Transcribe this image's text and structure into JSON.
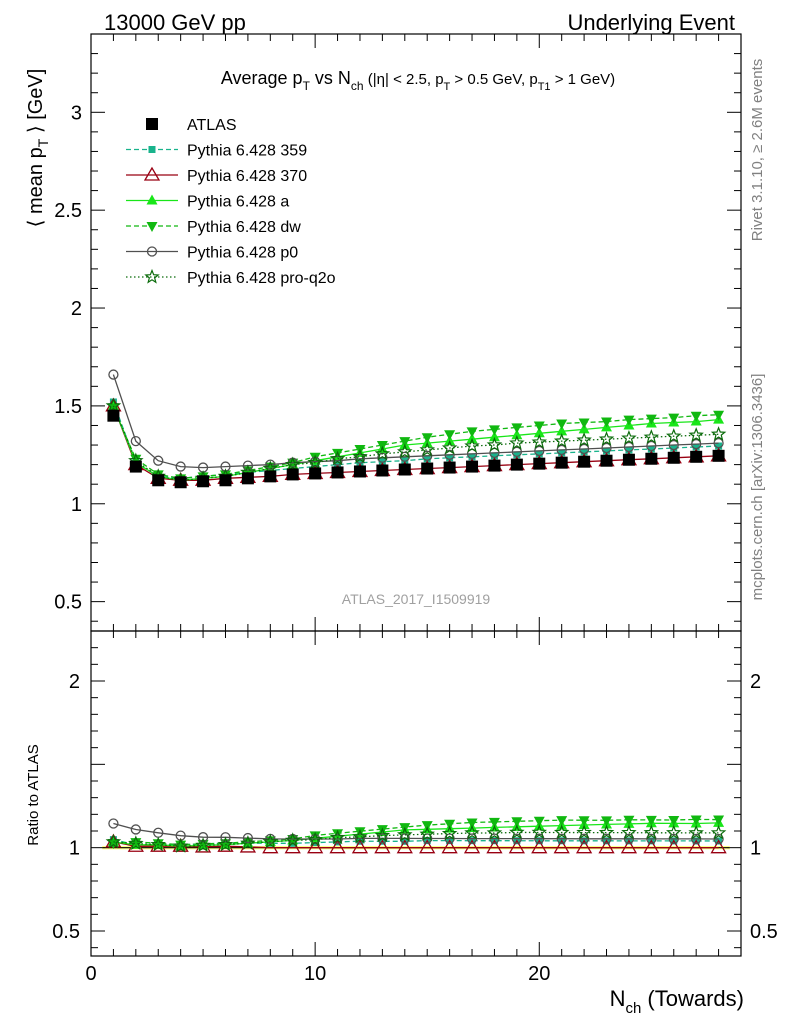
{
  "header": {
    "left": "13000 GeV pp",
    "right": "Underlying Event"
  },
  "side_labels": {
    "rivet": "Rivet 3.1.10, ≥ 2.6M events",
    "mcplots": "mcplots.cern.ch [arXiv:1306.3436]"
  },
  "watermark": "ATLAS_2017_I1509919",
  "colors": {
    "atlas": "#000000",
    "p359": "#19b38c",
    "p370": "#990012",
    "pa": "#19e619",
    "pdw": "#10b810",
    "pp0": "#505050",
    "pq2o": "#0b6b0b"
  },
  "chart_data": [
    {
      "type": "line",
      "title": "Average p_T vs N_ch (|η| < 2.5, p_T > 0.5 GeV, p_T1 > 1 GeV)",
      "title_parts": {
        "main": "Average p",
        "sub1": "T",
        "vs": " vs N",
        "sub2": "ch",
        "cuts_a": " (|η| < 2.5, p",
        "sub3": "T",
        "cuts_b": " > 0.5 GeV, p",
        "sub4": "T1",
        "cuts_c": " > 1 GeV)"
      },
      "ylabel_parts": {
        "pre": "⟨ mean p",
        "sub": "T",
        "post": " ⟩ [GeV]"
      },
      "xlabel_parts": {
        "pre": "N",
        "sub": "ch",
        "post": " (Towards)"
      },
      "xlim": [
        0,
        29
      ],
      "ylim": [
        0.35,
        3.4
      ],
      "y_ticks": [
        0.5,
        1,
        1.5,
        2,
        2.5,
        3
      ],
      "y_tick_labels": [
        "0.5",
        "1",
        "1.5",
        "2",
        "2.5",
        "3"
      ],
      "x_ticks": [
        0,
        10,
        20
      ],
      "x_tick_labels": [
        "0",
        "10",
        "20"
      ],
      "legend_position": "top-left",
      "x": [
        1,
        2,
        3,
        4,
        5,
        6,
        7,
        8,
        9,
        10,
        11,
        12,
        13,
        14,
        15,
        16,
        17,
        18,
        19,
        20,
        21,
        22,
        23,
        24,
        25,
        26,
        27,
        28
      ],
      "series": [
        {
          "name": "ATLAS",
          "key": "atlas",
          "marker": "square",
          "line": "none",
          "values": [
            1.45,
            1.19,
            1.12,
            1.11,
            1.115,
            1.12,
            1.13,
            1.14,
            1.15,
            1.155,
            1.16,
            1.165,
            1.17,
            1.175,
            1.18,
            1.185,
            1.19,
            1.195,
            1.2,
            1.205,
            1.21,
            1.215,
            1.22,
            1.225,
            1.23,
            1.235,
            1.24,
            1.245
          ]
        },
        {
          "name": "Pythia 6.428 359",
          "key": "p359",
          "marker": "small-square",
          "line": "dashed",
          "values": [
            1.52,
            1.21,
            1.14,
            1.13,
            1.14,
            1.15,
            1.16,
            1.17,
            1.18,
            1.19,
            1.2,
            1.21,
            1.215,
            1.22,
            1.23,
            1.235,
            1.24,
            1.245,
            1.25,
            1.255,
            1.26,
            1.265,
            1.27,
            1.275,
            1.28,
            1.285,
            1.29,
            1.295
          ]
        },
        {
          "name": "Pythia 6.428 370",
          "key": "p370",
          "marker": "open-triangle",
          "line": "solid",
          "values": [
            1.5,
            1.2,
            1.13,
            1.12,
            1.12,
            1.13,
            1.135,
            1.14,
            1.15,
            1.155,
            1.16,
            1.165,
            1.17,
            1.175,
            1.18,
            1.185,
            1.19,
            1.195,
            1.2,
            1.205,
            1.21,
            1.215,
            1.22,
            1.225,
            1.23,
            1.235,
            1.24,
            1.245
          ]
        },
        {
          "name": "Pythia 6.428 a",
          "key": "pa",
          "marker": "triangle-up",
          "line": "solid",
          "values": [
            1.5,
            1.21,
            1.14,
            1.12,
            1.13,
            1.14,
            1.16,
            1.18,
            1.2,
            1.22,
            1.24,
            1.26,
            1.28,
            1.3,
            1.31,
            1.32,
            1.33,
            1.34,
            1.35,
            1.36,
            1.37,
            1.38,
            1.39,
            1.4,
            1.41,
            1.415,
            1.42,
            1.43
          ]
        },
        {
          "name": "Pythia 6.428 dw",
          "key": "pdw",
          "marker": "triangle-down",
          "line": "dashed",
          "values": [
            1.49,
            1.23,
            1.15,
            1.13,
            1.14,
            1.15,
            1.17,
            1.19,
            1.21,
            1.24,
            1.26,
            1.28,
            1.3,
            1.32,
            1.34,
            1.355,
            1.37,
            1.38,
            1.39,
            1.4,
            1.41,
            1.415,
            1.42,
            1.43,
            1.435,
            1.44,
            1.45,
            1.455
          ]
        },
        {
          "name": "Pythia 6.428 p0",
          "key": "pp0",
          "marker": "open-circle",
          "line": "solid",
          "values": [
            1.66,
            1.32,
            1.22,
            1.19,
            1.185,
            1.19,
            1.195,
            1.2,
            1.21,
            1.215,
            1.22,
            1.23,
            1.235,
            1.24,
            1.245,
            1.25,
            1.255,
            1.26,
            1.265,
            1.27,
            1.275,
            1.28,
            1.285,
            1.29,
            1.295,
            1.3,
            1.305,
            1.31
          ]
        },
        {
          "name": "Pythia 6.428 pro-q2o",
          "key": "pq2o",
          "marker": "open-star",
          "line": "dotted",
          "values": [
            1.5,
            1.22,
            1.14,
            1.12,
            1.13,
            1.14,
            1.16,
            1.18,
            1.2,
            1.21,
            1.23,
            1.24,
            1.255,
            1.265,
            1.275,
            1.285,
            1.295,
            1.3,
            1.31,
            1.315,
            1.32,
            1.325,
            1.33,
            1.335,
            1.34,
            1.345,
            1.35,
            1.355
          ]
        }
      ]
    },
    {
      "type": "line",
      "ylabel": "Ratio to ATLAS",
      "xlim": [
        0,
        29
      ],
      "ylim": [
        0.35,
        2.3
      ],
      "y_ticks": [
        0.5,
        1,
        2
      ],
      "y_tick_labels": [
        "0.5",
        "1",
        "2"
      ]
    }
  ]
}
